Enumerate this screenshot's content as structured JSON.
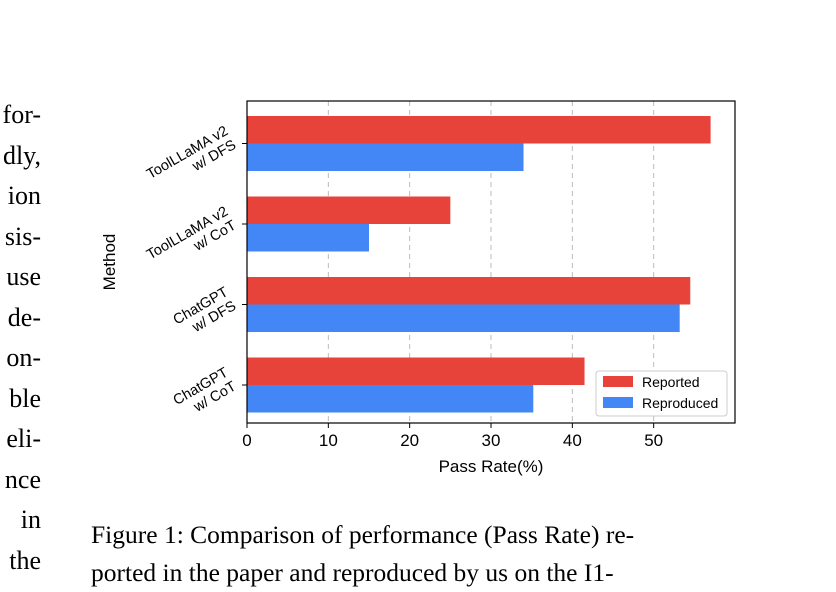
{
  "left_text_lines": [
    "for-",
    "dly,",
    "ion",
    "sis-",
    "use",
    "de-",
    "on-",
    "ble",
    "eli-",
    "nce",
    "in",
    "the"
  ],
  "chart_data": {
    "type": "bar",
    "orientation": "horizontal",
    "categories": [
      [
        "ToolLLaMA v2",
        "w/ DFS"
      ],
      [
        "ToolLLaMA v2",
        "w/ CoT"
      ],
      [
        "ChatGPT",
        "w/ DFS"
      ],
      [
        "ChatGPT",
        "w/ CoT"
      ]
    ],
    "series": [
      {
        "name": "Reported",
        "color": "#e8433b",
        "values": [
          57,
          25,
          54.5,
          41.5
        ]
      },
      {
        "name": "Reproduced",
        "color": "#4287f5",
        "values": [
          34,
          15,
          53.2,
          35.2
        ]
      }
    ],
    "xlabel": "Pass Rate(%)",
    "ylabel": "Method",
    "xlim": [
      0,
      60
    ],
    "xticks": [
      0,
      10,
      20,
      30,
      40,
      50
    ],
    "grid": "vertical dashed",
    "legend_position": "lower-right"
  },
  "caption_lines": [
    "Figure 1: Comparison of performance (Pass Rate) re-",
    "ported in the paper and reproduced by us on the I1-"
  ]
}
